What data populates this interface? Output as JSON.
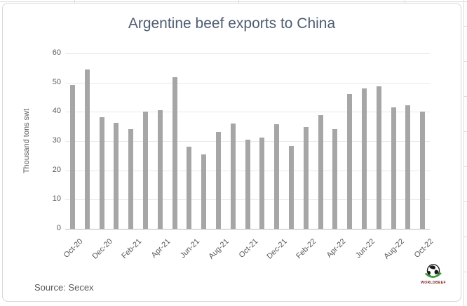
{
  "chart_data": {
    "type": "bar",
    "title": "Argentine beef exports to China",
    "xlabel": "",
    "ylabel": "Thousand tons swt",
    "ylim": [
      0,
      60
    ],
    "yticks": [
      0,
      10,
      20,
      30,
      40,
      50,
      60
    ],
    "grid": true,
    "legend": "none",
    "categories": [
      "Oct-20",
      "Nov-20",
      "Dec-20",
      "Jan-21",
      "Feb-21",
      "Mar-21",
      "Apr-21",
      "May-21",
      "Jun-21",
      "Jul-21",
      "Aug-21",
      "Sep-21",
      "Oct-21",
      "Nov-21",
      "Dec-21",
      "Jan-22",
      "Feb-22",
      "Mar-22",
      "Apr-22",
      "May-22",
      "Jun-22",
      "Jul-22",
      "Aug-22",
      "Sep-22",
      "Oct-22"
    ],
    "values": [
      49.1,
      54.6,
      38.2,
      36.2,
      34.0,
      40.0,
      40.6,
      51.8,
      28.0,
      25.4,
      33.2,
      36.0,
      30.4,
      31.3,
      35.8,
      28.4,
      34.8,
      38.8,
      34.2,
      46.1,
      48.1,
      48.8,
      41.5,
      42.2,
      40.2
    ],
    "shown_x_tick_labels": [
      "Oct-20",
      "Dec-20",
      "Feb-21",
      "Apr-21",
      "Jun-21",
      "Aug-21",
      "Oct-21",
      "Dec-21",
      "Feb-22",
      "Apr-22",
      "Jun-22",
      "Aug-22",
      "Oct-22"
    ],
    "source": "Source: Secex"
  },
  "logo": {
    "text": "WORLDBEEF"
  },
  "colors": {
    "bar": "#a6a6a6",
    "gridline": "#e8e8e8",
    "axis_line": "#b9b9b9",
    "text": "#595959",
    "title_text": "#4e5d72",
    "chart_border": "#d7d7d7",
    "logo_text": "#7a1f1f",
    "logo_green": "#37a034"
  }
}
